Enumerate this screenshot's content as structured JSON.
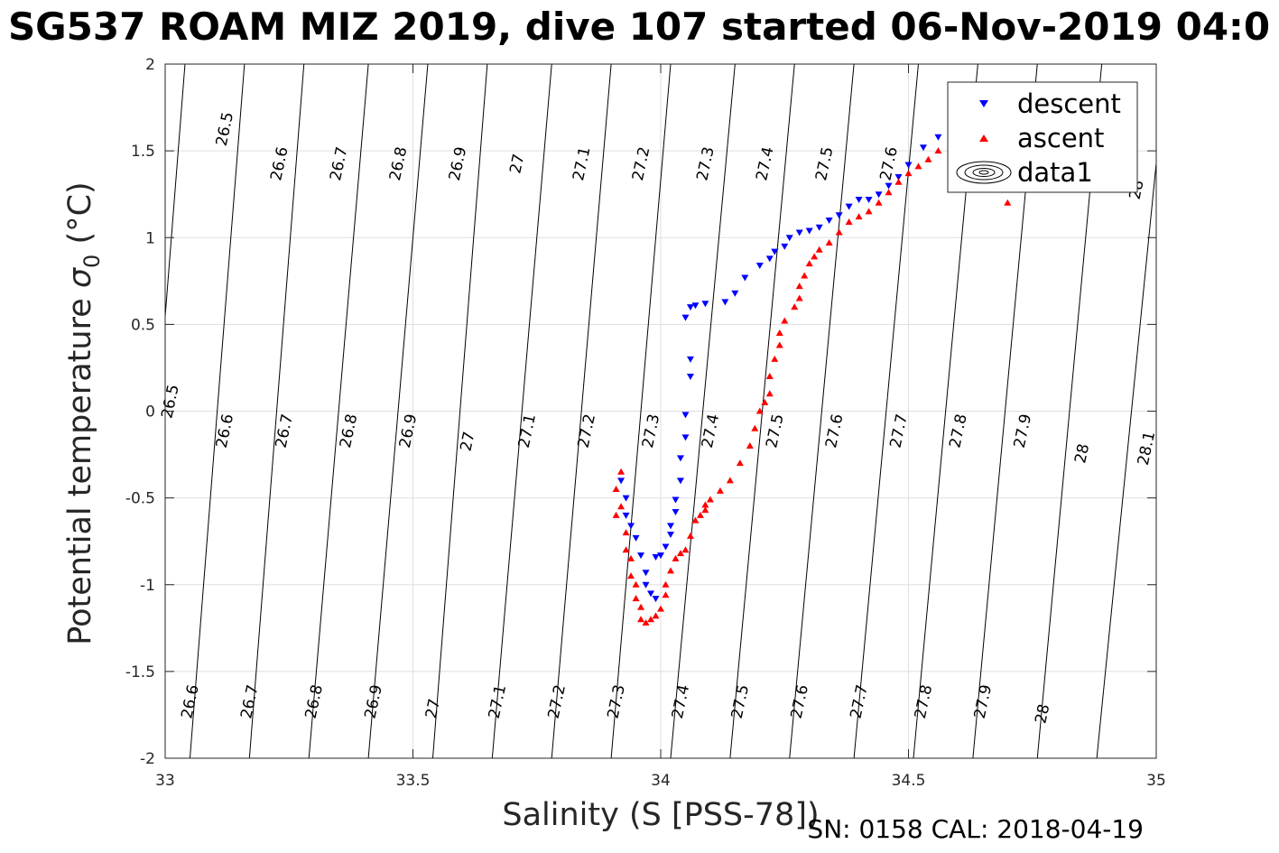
{
  "chart_data": {
    "type": "scatter",
    "title": "SG537 ROAM MIZ 2019, dive 107 started 06-Nov-2019 04:0",
    "xlabel": "Salinity (S [PSS-78])",
    "ylabel_main": "Potential temperature ",
    "ylabel_symbol": "σ",
    "ylabel_sub": "0",
    "ylabel_unit": " (°C)",
    "footer": "SN: 0158  CAL: 2018-04-19",
    "xlim": [
      33,
      35
    ],
    "ylim": [
      -2,
      2
    ],
    "xticks": [
      33,
      33.5,
      34,
      34.5,
      35
    ],
    "xtick_labels": [
      "33",
      "33.5",
      "34",
      "34.5",
      "35"
    ],
    "yticks": [
      -2,
      -1.5,
      -1,
      -0.5,
      0,
      0.5,
      1,
      1.5,
      2
    ],
    "ytick_labels": [
      "-2",
      "-1.5",
      "-1",
      "-0.5",
      "0",
      "0.5",
      "1",
      "1.5",
      "2"
    ],
    "grid": true,
    "legend": {
      "placement": "top-right",
      "entries": [
        "descent",
        "ascent",
        "data1"
      ]
    },
    "colors": {
      "descent": "#0000ff",
      "ascent": "#ff0000",
      "contour": "#000000",
      "grid": "#dfdfdf"
    },
    "contours": [
      {
        "level": "26.5",
        "x_at_tmin": 32.93,
        "x_at_tmax": 33.04
      },
      {
        "level": "26.6",
        "x_at_tmin": 33.05,
        "x_at_tmax": 33.16
      },
      {
        "level": "26.7",
        "x_at_tmin": 33.17,
        "x_at_tmax": 33.28
      },
      {
        "level": "26.8",
        "x_at_tmin": 33.29,
        "x_at_tmax": 33.41
      },
      {
        "level": "26.9",
        "x_at_tmin": 33.41,
        "x_at_tmax": 33.53
      },
      {
        "level": "27",
        "x_at_tmin": 33.54,
        "x_at_tmax": 33.65
      },
      {
        "level": "27.1",
        "x_at_tmin": 33.66,
        "x_at_tmax": 33.78
      },
      {
        "level": "27.2",
        "x_at_tmin": 33.78,
        "x_at_tmax": 33.9
      },
      {
        "level": "27.3",
        "x_at_tmin": 33.9,
        "x_at_tmax": 34.02
      },
      {
        "level": "27.4",
        "x_at_tmin": 34.02,
        "x_at_tmax": 34.15
      },
      {
        "level": "27.5",
        "x_at_tmin": 34.14,
        "x_at_tmax": 34.27
      },
      {
        "level": "27.6",
        "x_at_tmin": 34.26,
        "x_at_tmax": 34.39
      },
      {
        "level": "27.7",
        "x_at_tmin": 34.39,
        "x_at_tmax": 34.52
      },
      {
        "level": "27.8",
        "x_at_tmin": 34.51,
        "x_at_tmax": 34.64
      },
      {
        "level": "27.9",
        "x_at_tmin": 34.63,
        "x_at_tmax": 34.76
      },
      {
        "level": "28",
        "x_at_tmin": 34.76,
        "x_at_tmax": 34.89
      },
      {
        "level": "28.1",
        "x_at_tmin": 34.88,
        "x_at_tmax": 35.02
      }
    ],
    "contour_labels_row1": [
      {
        "text": "26.5",
        "x": 33.13,
        "y": 1.62
      },
      {
        "text": "26.6",
        "x": 33.24,
        "y": 1.42
      },
      {
        "text": "26.7",
        "x": 33.36,
        "y": 1.42
      },
      {
        "text": "26.8",
        "x": 33.48,
        "y": 1.42
      },
      {
        "text": "26.9",
        "x": 33.6,
        "y": 1.42
      },
      {
        "text": "27",
        "x": 33.72,
        "y": 1.42
      },
      {
        "text": "27.1",
        "x": 33.85,
        "y": 1.42
      },
      {
        "text": "27.2",
        "x": 33.97,
        "y": 1.42
      },
      {
        "text": "27.3",
        "x": 34.1,
        "y": 1.42
      },
      {
        "text": "27.4",
        "x": 34.22,
        "y": 1.42
      },
      {
        "text": "27.5",
        "x": 34.34,
        "y": 1.42
      },
      {
        "text": "27.6",
        "x": 34.47,
        "y": 1.42
      },
      {
        "text": "28",
        "x": 34.97,
        "y": 1.27
      }
    ],
    "contour_labels_row2": [
      {
        "text": "26.5",
        "x": 33.02,
        "y": 0.05
      },
      {
        "text": "26.6",
        "x": 33.13,
        "y": -0.12
      },
      {
        "text": "26.7",
        "x": 33.25,
        "y": -0.12
      },
      {
        "text": "26.8",
        "x": 33.38,
        "y": -0.12
      },
      {
        "text": "26.9",
        "x": 33.5,
        "y": -0.12
      },
      {
        "text": "27",
        "x": 33.62,
        "y": -0.18
      },
      {
        "text": "27.1",
        "x": 33.74,
        "y": -0.12
      },
      {
        "text": "27.2",
        "x": 33.86,
        "y": -0.12
      },
      {
        "text": "27.3",
        "x": 33.99,
        "y": -0.12
      },
      {
        "text": "27.4",
        "x": 34.11,
        "y": -0.12
      },
      {
        "text": "27.5",
        "x": 34.24,
        "y": -0.12
      },
      {
        "text": "27.6",
        "x": 34.36,
        "y": -0.12
      },
      {
        "text": "27.7",
        "x": 34.49,
        "y": -0.12
      },
      {
        "text": "27.8",
        "x": 34.61,
        "y": -0.12
      },
      {
        "text": "27.9",
        "x": 34.74,
        "y": -0.12
      },
      {
        "text": "28",
        "x": 34.86,
        "y": -0.25
      },
      {
        "text": "28.1",
        "x": 34.99,
        "y": -0.22
      }
    ],
    "contour_labels_row3": [
      {
        "text": "26.6",
        "x": 33.06,
        "y": -1.68
      },
      {
        "text": "26.7",
        "x": 33.18,
        "y": -1.68
      },
      {
        "text": "26.8",
        "x": 33.31,
        "y": -1.68
      },
      {
        "text": "26.9",
        "x": 33.43,
        "y": -1.68
      },
      {
        "text": "27",
        "x": 33.55,
        "y": -1.72
      },
      {
        "text": "27.1",
        "x": 33.68,
        "y": -1.68
      },
      {
        "text": "27.2",
        "x": 33.8,
        "y": -1.68
      },
      {
        "text": "27.3",
        "x": 33.92,
        "y": -1.68
      },
      {
        "text": "27.4",
        "x": 34.05,
        "y": -1.68
      },
      {
        "text": "27.5",
        "x": 34.17,
        "y": -1.68
      },
      {
        "text": "27.6",
        "x": 34.29,
        "y": -1.68
      },
      {
        "text": "27.7",
        "x": 34.41,
        "y": -1.68
      },
      {
        "text": "27.8",
        "x": 34.54,
        "y": -1.68
      },
      {
        "text": "27.9",
        "x": 34.66,
        "y": -1.68
      },
      {
        "text": "28",
        "x": 34.78,
        "y": -1.75
      }
    ],
    "series": [
      {
        "name": "descent",
        "marker": "triangle-down",
        "x": [
          33.92,
          33.93,
          33.93,
          33.94,
          33.95,
          33.96,
          33.97,
          33.97,
          33.98,
          33.99,
          33.99,
          34.0,
          34.01,
          34.02,
          34.02,
          34.03,
          34.03,
          34.04,
          34.04,
          34.05,
          34.05,
          34.06,
          34.06,
          34.05,
          34.06,
          34.07,
          34.09,
          34.13,
          34.15,
          34.17,
          34.2,
          34.22,
          34.23,
          34.25,
          34.26,
          34.28,
          34.3,
          34.32,
          34.34,
          34.36,
          34.38,
          34.4,
          34.42,
          34.44,
          34.46,
          34.48,
          34.5,
          34.53,
          34.56,
          34.59
        ],
        "y": [
          -0.4,
          -0.5,
          -0.6,
          -0.66,
          -0.73,
          -0.83,
          -0.93,
          -1.0,
          -1.05,
          -1.08,
          -0.84,
          -0.83,
          -0.78,
          -0.71,
          -0.66,
          -0.58,
          -0.51,
          -0.4,
          -0.27,
          -0.15,
          -0.02,
          0.2,
          0.3,
          0.54,
          0.6,
          0.61,
          0.62,
          0.63,
          0.68,
          0.77,
          0.84,
          0.88,
          0.92,
          0.95,
          1.0,
          1.03,
          1.04,
          1.06,
          1.1,
          1.13,
          1.18,
          1.22,
          1.22,
          1.25,
          1.3,
          1.35,
          1.42,
          1.52,
          1.58,
          1.6
        ]
      },
      {
        "name": "ascent",
        "marker": "triangle-up",
        "x": [
          33.92,
          33.91,
          33.92,
          33.91,
          33.93,
          33.93,
          33.94,
          33.94,
          33.95,
          33.95,
          33.96,
          33.96,
          33.97,
          33.98,
          33.99,
          34.0,
          34.01,
          34.01,
          34.02,
          34.03,
          34.04,
          34.05,
          34.06,
          34.07,
          34.08,
          34.09,
          34.09,
          34.1,
          34.12,
          34.14,
          34.16,
          34.18,
          34.19,
          34.2,
          34.21,
          34.22,
          34.22,
          34.23,
          34.24,
          34.24,
          34.25,
          34.27,
          34.28,
          34.28,
          34.29,
          34.3,
          34.31,
          34.32,
          34.34,
          34.36,
          34.38,
          34.4,
          34.42,
          34.44,
          34.46,
          34.48,
          34.5,
          34.52,
          34.54,
          34.56,
          34.6,
          34.63,
          34.66,
          34.69,
          34.7,
          34.7
        ],
        "y": [
          -0.35,
          -0.45,
          -0.55,
          -0.6,
          -0.7,
          -0.8,
          -0.85,
          -0.95,
          -1.0,
          -1.08,
          -1.13,
          -1.2,
          -1.22,
          -1.2,
          -1.18,
          -1.14,
          -1.06,
          -1.0,
          -0.92,
          -0.85,
          -0.82,
          -0.8,
          -0.72,
          -0.63,
          -0.6,
          -0.57,
          -0.54,
          -0.51,
          -0.46,
          -0.4,
          -0.3,
          -0.2,
          -0.1,
          0.0,
          0.05,
          0.1,
          0.2,
          0.3,
          0.38,
          0.45,
          0.52,
          0.6,
          0.65,
          0.72,
          0.78,
          0.85,
          0.89,
          0.93,
          0.97,
          1.03,
          1.09,
          1.12,
          1.15,
          1.2,
          1.26,
          1.32,
          1.37,
          1.41,
          1.45,
          1.5,
          1.55,
          1.6,
          1.55,
          1.45,
          1.3,
          1.2
        ]
      }
    ]
  }
}
